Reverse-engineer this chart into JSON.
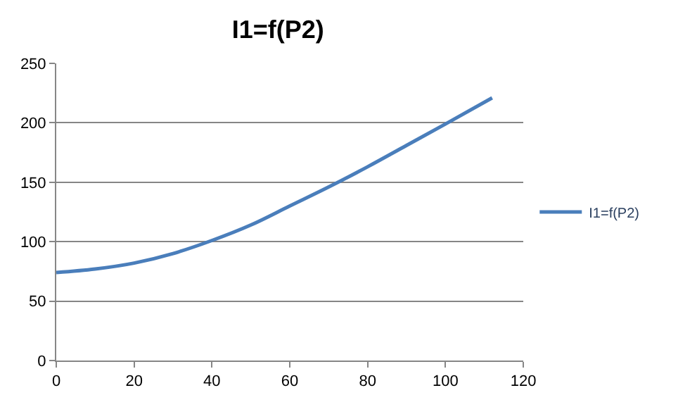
{
  "chart_data": {
    "type": "line",
    "title": "I1=f(P2)",
    "x": [
      0,
      10,
      20,
      30,
      40,
      50,
      60,
      70,
      80,
      90,
      100,
      112
    ],
    "series": [
      {
        "name": "I1=f(P2)",
        "color": "#4a7ebb",
        "values": [
          74,
          77,
          82,
          90,
          101,
          114,
          130,
          146,
          163,
          181,
          199,
          221
        ]
      }
    ],
    "xlim": [
      0,
      120
    ],
    "xticks": [
      0,
      20,
      40,
      60,
      80,
      100,
      120
    ],
    "ylim": [
      0,
      250
    ],
    "yticks": [
      0,
      50,
      100,
      150,
      200,
      250
    ],
    "grid": "y",
    "legend": "right",
    "marker": "none",
    "line_style": "solid"
  }
}
